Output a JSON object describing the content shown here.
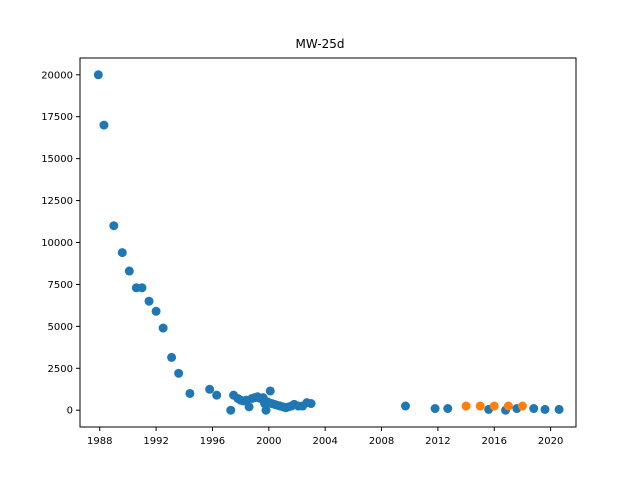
{
  "chart_data": {
    "type": "scatter",
    "title": "MW-25d",
    "xlabel": "",
    "ylabel": "",
    "xlim": [
      1986.6,
      2021.8
    ],
    "ylim": [
      -1000,
      21000
    ],
    "x_ticks": [
      1988,
      1992,
      1996,
      2000,
      2004,
      2008,
      2012,
      2016,
      2020
    ],
    "y_ticks": [
      0,
      2500,
      5000,
      7500,
      10000,
      12500,
      15000,
      17500,
      20000
    ],
    "grid": false,
    "series": [
      {
        "color": "#1f77b4",
        "points": [
          [
            1987.9,
            20000
          ],
          [
            1988.3,
            17000
          ],
          [
            1989.0,
            11000
          ],
          [
            1989.6,
            9400
          ],
          [
            1990.1,
            8300
          ],
          [
            1990.6,
            7300
          ],
          [
            1991.0,
            7300
          ],
          [
            1991.5,
            6500
          ],
          [
            1992.0,
            5900
          ],
          [
            1992.5,
            4900
          ],
          [
            1993.1,
            3150
          ],
          [
            1993.6,
            2200
          ],
          [
            1994.4,
            1000
          ],
          [
            1995.8,
            1250
          ],
          [
            1996.3,
            900
          ],
          [
            1997.3,
            0
          ],
          [
            1997.5,
            900
          ],
          [
            1997.8,
            700
          ],
          [
            1998.0,
            600
          ],
          [
            1998.2,
            550
          ],
          [
            1998.4,
            600
          ],
          [
            1998.6,
            200
          ],
          [
            1998.8,
            700
          ],
          [
            1999.0,
            750
          ],
          [
            1999.2,
            800
          ],
          [
            1999.4,
            700
          ],
          [
            1999.6,
            750
          ],
          [
            1999.7,
            400
          ],
          [
            1999.8,
            0
          ],
          [
            1999.9,
            500
          ],
          [
            2000.1,
            1150
          ],
          [
            2000.2,
            400
          ],
          [
            2000.4,
            350
          ],
          [
            2000.6,
            300
          ],
          [
            2000.8,
            250
          ],
          [
            2001.0,
            200
          ],
          [
            2001.2,
            150
          ],
          [
            2001.4,
            200
          ],
          [
            2001.6,
            250
          ],
          [
            2001.8,
            350
          ],
          [
            2002.1,
            250
          ],
          [
            2002.4,
            250
          ],
          [
            2002.7,
            450
          ],
          [
            2003.0,
            400
          ],
          [
            2009.7,
            250
          ],
          [
            2011.8,
            100
          ],
          [
            2012.7,
            100
          ],
          [
            2015.6,
            50
          ],
          [
            2016.8,
            0
          ],
          [
            2017.6,
            100
          ],
          [
            2018.8,
            100
          ],
          [
            2019.6,
            50
          ],
          [
            2020.6,
            50
          ]
        ]
      },
      {
        "color": "#ff7f0e",
        "points": [
          [
            2014.0,
            250
          ],
          [
            2015.0,
            250
          ],
          [
            2016.0,
            250
          ],
          [
            2017.0,
            250
          ],
          [
            2018.0,
            250
          ]
        ]
      }
    ]
  }
}
